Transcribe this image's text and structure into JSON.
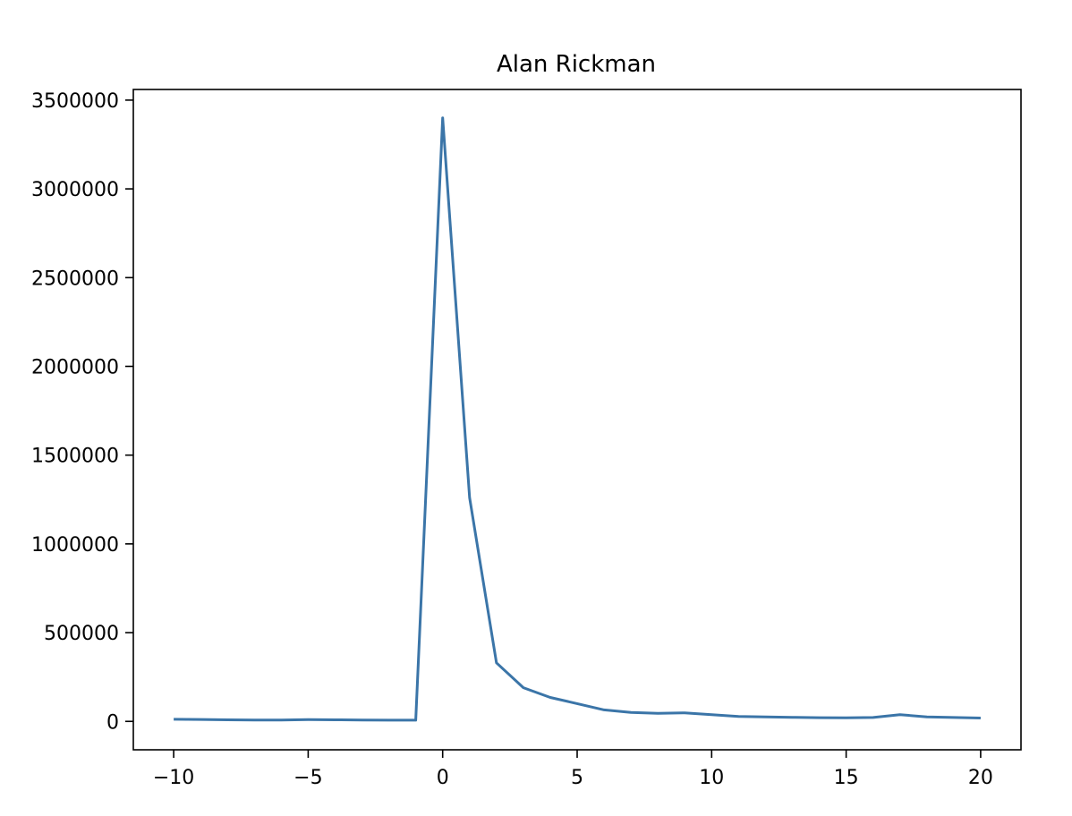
{
  "chart_data": {
    "type": "line",
    "title": "Alan Rickman",
    "xlabel": "",
    "ylabel": "",
    "xlim": [
      -11.5,
      21.5
    ],
    "ylim": [
      -160000,
      3560000
    ],
    "xticks": [
      -10,
      -5,
      0,
      5,
      10,
      15,
      20
    ],
    "xtick_labels": [
      "−10",
      "−5",
      "0",
      "5",
      "10",
      "15",
      "20"
    ],
    "yticks": [
      0,
      500000,
      1000000,
      1500000,
      2000000,
      2500000,
      3000000,
      3500000
    ],
    "ytick_labels": [
      "0",
      "500000",
      "1000000",
      "1500000",
      "2000000",
      "2500000",
      "3000000",
      "3500000"
    ],
    "grid": false,
    "line_color": "#3b75a8",
    "series": [
      {
        "x": [
          -10,
          -9,
          -8,
          -7,
          -6,
          -5,
          -4,
          -3,
          -2,
          -1,
          0,
          1,
          2,
          3,
          4,
          5,
          6,
          7,
          8,
          9,
          10,
          11,
          12,
          13,
          14,
          15,
          16,
          17,
          18,
          19,
          20
        ],
        "values": [
          12000,
          11000,
          9000,
          8000,
          8000,
          10000,
          9000,
          8000,
          7000,
          7000,
          3400000,
          1260000,
          330000,
          190000,
          135000,
          100000,
          65000,
          50000,
          45000,
          48000,
          38000,
          28000,
          25000,
          23000,
          21000,
          20000,
          22000,
          38000,
          25000,
          22000,
          19000
        ]
      }
    ]
  }
}
